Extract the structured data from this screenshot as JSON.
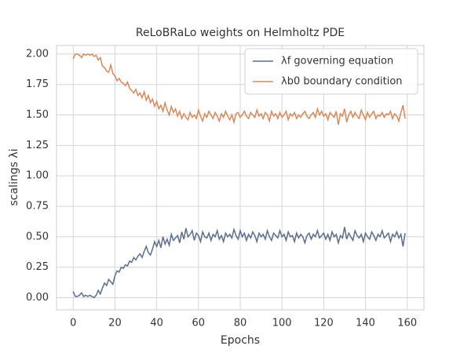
{
  "chart_data": {
    "type": "line",
    "title": "ReLoBRaLo weights on Helmholtz PDE",
    "xlabel": "Epochs",
    "ylabel": "scalings λi",
    "x": [
      0,
      1,
      2,
      3,
      4,
      5,
      6,
      7,
      8,
      9,
      10,
      11,
      12,
      13,
      14,
      15,
      16,
      17,
      18,
      19,
      20,
      21,
      22,
      23,
      24,
      25,
      26,
      27,
      28,
      29,
      30,
      31,
      32,
      33,
      34,
      35,
      36,
      37,
      38,
      39,
      40,
      41,
      42,
      43,
      44,
      45,
      46,
      47,
      48,
      49,
      50,
      51,
      52,
      53,
      54,
      55,
      56,
      57,
      58,
      59,
      60,
      61,
      62,
      63,
      64,
      65,
      66,
      67,
      68,
      69,
      70,
      71,
      72,
      73,
      74,
      75,
      76,
      77,
      78,
      79,
      80,
      81,
      82,
      83,
      84,
      85,
      86,
      87,
      88,
      89,
      90,
      91,
      92,
      93,
      94,
      95,
      96,
      97,
      98,
      99,
      100,
      101,
      102,
      103,
      104,
      105,
      106,
      107,
      108,
      109,
      110,
      111,
      112,
      113,
      114,
      115,
      116,
      117,
      118,
      119,
      120,
      121,
      122,
      123,
      124,
      125,
      126,
      127,
      128,
      129,
      130,
      131,
      132,
      133,
      134,
      135,
      136,
      137,
      138,
      139,
      140,
      141,
      142,
      143,
      144,
      145,
      146,
      147,
      148,
      149,
      150,
      151,
      152,
      153,
      154,
      155,
      156,
      157,
      158,
      159
    ],
    "series": [
      {
        "name": "λf governing equation",
        "color": "#5d6d8c",
        "values": [
          0.05,
          0.01,
          0.01,
          0.02,
          0.04,
          0.01,
          0.02,
          0.01,
          0.02,
          0.01,
          0.0,
          0.02,
          0.06,
          0.03,
          0.08,
          0.12,
          0.1,
          0.15,
          0.13,
          0.11,
          0.18,
          0.22,
          0.21,
          0.25,
          0.24,
          0.27,
          0.26,
          0.3,
          0.29,
          0.33,
          0.31,
          0.34,
          0.36,
          0.33,
          0.38,
          0.42,
          0.37,
          0.35,
          0.4,
          0.46,
          0.42,
          0.47,
          0.41,
          0.5,
          0.44,
          0.48,
          0.43,
          0.52,
          0.47,
          0.49,
          0.51,
          0.45,
          0.54,
          0.48,
          0.57,
          0.5,
          0.52,
          0.55,
          0.47,
          0.53,
          0.51,
          0.46,
          0.54,
          0.5,
          0.49,
          0.53,
          0.47,
          0.52,
          0.5,
          0.55,
          0.48,
          0.51,
          0.46,
          0.53,
          0.5,
          0.52,
          0.49,
          0.56,
          0.51,
          0.48,
          0.55,
          0.5,
          0.53,
          0.47,
          0.52,
          0.49,
          0.54,
          0.51,
          0.46,
          0.53,
          0.5,
          0.52,
          0.48,
          0.55,
          0.5,
          0.47,
          0.53,
          0.51,
          0.49,
          0.55,
          0.5,
          0.52,
          0.47,
          0.54,
          0.5,
          0.51,
          0.46,
          0.53,
          0.49,
          0.52,
          0.5,
          0.45,
          0.51,
          0.53,
          0.48,
          0.52,
          0.5,
          0.55,
          0.49,
          0.51,
          0.53,
          0.48,
          0.52,
          0.47,
          0.54,
          0.5,
          0.52,
          0.45,
          0.51,
          0.49,
          0.58,
          0.48,
          0.53,
          0.5,
          0.47,
          0.55,
          0.51,
          0.49,
          0.52,
          0.46,
          0.53,
          0.5,
          0.48,
          0.54,
          0.51,
          0.47,
          0.52,
          0.5,
          0.55,
          0.49,
          0.51,
          0.53,
          0.46,
          0.52,
          0.5,
          0.54,
          0.49,
          0.52,
          0.42,
          0.53
        ]
      },
      {
        "name": "λb0 boundary condition",
        "color": "#d9895b",
        "values": [
          1.96,
          2.0,
          2.0,
          1.99,
          1.97,
          2.0,
          1.99,
          2.0,
          1.99,
          2.0,
          1.98,
          1.99,
          1.95,
          1.97,
          1.9,
          1.89,
          1.86,
          1.85,
          1.91,
          1.84,
          1.82,
          1.78,
          1.8,
          1.77,
          1.76,
          1.74,
          1.77,
          1.72,
          1.7,
          1.68,
          1.71,
          1.66,
          1.68,
          1.64,
          1.69,
          1.62,
          1.66,
          1.6,
          1.63,
          1.57,
          1.61,
          1.55,
          1.58,
          1.53,
          1.6,
          1.54,
          1.5,
          1.57,
          1.52,
          1.55,
          1.49,
          1.53,
          1.47,
          1.51,
          1.48,
          1.46,
          1.52,
          1.48,
          1.5,
          1.47,
          1.54,
          1.49,
          1.45,
          1.51,
          1.48,
          1.53,
          1.5,
          1.47,
          1.52,
          1.49,
          1.45,
          1.51,
          1.48,
          1.53,
          1.49,
          1.46,
          1.5,
          1.44,
          1.51,
          1.52,
          1.48,
          1.5,
          1.53,
          1.49,
          1.47,
          1.52,
          1.5,
          1.48,
          1.54,
          1.49,
          1.51,
          1.47,
          1.52,
          1.5,
          1.45,
          1.53,
          1.49,
          1.51,
          1.47,
          1.52,
          1.48,
          1.5,
          1.53,
          1.46,
          1.51,
          1.49,
          1.52,
          1.47,
          1.5,
          1.48,
          1.51,
          1.53,
          1.49,
          1.47,
          1.5,
          1.52,
          1.48,
          1.55,
          1.5,
          1.53,
          1.49,
          1.51,
          1.46,
          1.52,
          1.5,
          1.48,
          1.53,
          1.42,
          1.51,
          1.49,
          1.55,
          1.44,
          1.5,
          1.53,
          1.48,
          1.52,
          1.49,
          1.47,
          1.54,
          1.5,
          1.46,
          1.52,
          1.48,
          1.51,
          1.53,
          1.47,
          1.5,
          1.49,
          1.52,
          1.48,
          1.51,
          1.5,
          1.53,
          1.47,
          1.51,
          1.49,
          1.45,
          1.52,
          1.58,
          1.47
        ]
      }
    ],
    "xlim": [
      -8,
      168
    ],
    "ylim": [
      -0.1,
      2.07
    ],
    "xticks": [
      0,
      20,
      40,
      60,
      80,
      100,
      120,
      140,
      160
    ],
    "yticks": [
      {
        "value": 0,
        "label": "0.00"
      },
      {
        "value": 0.25,
        "label": "0.25"
      },
      {
        "value": 0.5,
        "label": "0.50"
      },
      {
        "value": 0.75,
        "label": "0.75"
      },
      {
        "value": 1,
        "label": "1.00"
      },
      {
        "value": 1.25,
        "label": "1.25"
      },
      {
        "value": 1.5,
        "label": "1.50"
      },
      {
        "value": 1.75,
        "label": "1.75"
      },
      {
        "value": 2,
        "label": "2.00"
      }
    ],
    "grid": true,
    "legend": "upper-right"
  }
}
